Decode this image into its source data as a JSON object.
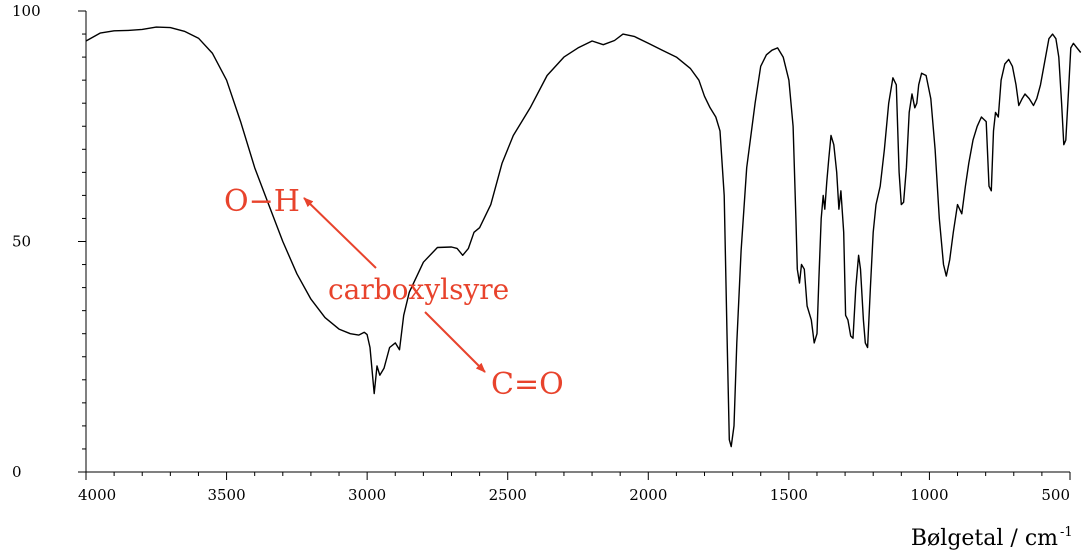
{
  "chart_data": {
    "type": "line",
    "xlabel": "Bølgetal / cm",
    "xlabel_sup": "-1",
    "ylabel": "",
    "xlim": [
      4000,
      500
    ],
    "ylim": [
      0,
      100
    ],
    "x_ticks": [
      4000,
      3500,
      3000,
      2500,
      2000,
      1500,
      1000,
      500
    ],
    "y_ticks": [
      0,
      50,
      100
    ],
    "grid": false,
    "line_color": "#000000",
    "annotation_color": "#e8432c",
    "series": [
      {
        "points": [
          [
            4000,
            93.5
          ],
          [
            3950,
            95.2
          ],
          [
            3900,
            95.7
          ],
          [
            3850,
            95.8
          ],
          [
            3800,
            96.0
          ],
          [
            3750,
            96.5
          ],
          [
            3700,
            96.4
          ],
          [
            3650,
            95.6
          ],
          [
            3600,
            94.1
          ],
          [
            3550,
            90.8
          ],
          [
            3500,
            85.0
          ],
          [
            3450,
            76.0
          ],
          [
            3400,
            66.0
          ],
          [
            3350,
            58.0
          ],
          [
            3300,
            50.0
          ],
          [
            3250,
            43.0
          ],
          [
            3200,
            37.5
          ],
          [
            3150,
            33.5
          ],
          [
            3100,
            31.0
          ],
          [
            3060,
            30.0
          ],
          [
            3030,
            29.7
          ],
          [
            3010,
            30.3
          ],
          [
            3000,
            29.8
          ],
          [
            2990,
            27.0
          ],
          [
            2975,
            17.0
          ],
          [
            2965,
            23.0
          ],
          [
            2955,
            21.0
          ],
          [
            2940,
            22.5
          ],
          [
            2920,
            27.0
          ],
          [
            2900,
            28.0
          ],
          [
            2885,
            26.5
          ],
          [
            2870,
            34.0
          ],
          [
            2850,
            39.0
          ],
          [
            2800,
            45.5
          ],
          [
            2750,
            48.7
          ],
          [
            2700,
            48.8
          ],
          [
            2680,
            48.5
          ],
          [
            2660,
            47.0
          ],
          [
            2640,
            48.5
          ],
          [
            2620,
            52.0
          ],
          [
            2600,
            53.0
          ],
          [
            2560,
            58.0
          ],
          [
            2520,
            67.0
          ],
          [
            2480,
            73.0
          ],
          [
            2420,
            79.0
          ],
          [
            2360,
            86.0
          ],
          [
            2300,
            90.0
          ],
          [
            2250,
            92.0
          ],
          [
            2200,
            93.5
          ],
          [
            2160,
            92.7
          ],
          [
            2120,
            93.6
          ],
          [
            2090,
            95.0
          ],
          [
            2050,
            94.5
          ],
          [
            2000,
            93.0
          ],
          [
            1950,
            91.5
          ],
          [
            1900,
            90.0
          ],
          [
            1850,
            87.5
          ],
          [
            1820,
            85.0
          ],
          [
            1800,
            81.5
          ],
          [
            1780,
            79.0
          ],
          [
            1760,
            77.0
          ],
          [
            1745,
            74.0
          ],
          [
            1730,
            60.0
          ],
          [
            1720,
            30.0
          ],
          [
            1712,
            7.0
          ],
          [
            1705,
            5.5
          ],
          [
            1695,
            10.0
          ],
          [
            1685,
            28.0
          ],
          [
            1670,
            48.0
          ],
          [
            1650,
            66.0
          ],
          [
            1620,
            80.0
          ],
          [
            1600,
            88.0
          ],
          [
            1580,
            90.5
          ],
          [
            1560,
            91.5
          ],
          [
            1540,
            92.0
          ],
          [
            1520,
            90.0
          ],
          [
            1500,
            85.0
          ],
          [
            1485,
            75.0
          ],
          [
            1475,
            55.0
          ],
          [
            1470,
            44.0
          ],
          [
            1462,
            41.0
          ],
          [
            1455,
            45.0
          ],
          [
            1445,
            44.0
          ],
          [
            1435,
            36.0
          ],
          [
            1420,
            33.0
          ],
          [
            1410,
            28.0
          ],
          [
            1400,
            30.0
          ],
          [
            1393,
            42.0
          ],
          [
            1385,
            55.0
          ],
          [
            1378,
            60.0
          ],
          [
            1372,
            57.0
          ],
          [
            1365,
            63.0
          ],
          [
            1358,
            68.0
          ],
          [
            1350,
            73.0
          ],
          [
            1340,
            71.0
          ],
          [
            1330,
            65.0
          ],
          [
            1322,
            57.0
          ],
          [
            1315,
            61.0
          ],
          [
            1305,
            52.0
          ],
          [
            1298,
            34.0
          ],
          [
            1290,
            33.0
          ],
          [
            1280,
            29.5
          ],
          [
            1272,
            29.0
          ],
          [
            1262,
            40.0
          ],
          [
            1252,
            47.0
          ],
          [
            1245,
            44.0
          ],
          [
            1235,
            33.0
          ],
          [
            1228,
            28.0
          ],
          [
            1220,
            27.0
          ],
          [
            1210,
            40.0
          ],
          [
            1200,
            52.0
          ],
          [
            1190,
            58.0
          ],
          [
            1175,
            62.0
          ],
          [
            1160,
            70.0
          ],
          [
            1145,
            80.0
          ],
          [
            1130,
            85.5
          ],
          [
            1118,
            84.0
          ],
          [
            1108,
            65.0
          ],
          [
            1100,
            58.0
          ],
          [
            1092,
            58.5
          ],
          [
            1082,
            66.0
          ],
          [
            1072,
            78.0
          ],
          [
            1062,
            82.0
          ],
          [
            1052,
            79.0
          ],
          [
            1045,
            80.0
          ],
          [
            1038,
            84.0
          ],
          [
            1028,
            86.5
          ],
          [
            1012,
            86.0
          ],
          [
            995,
            81.0
          ],
          [
            980,
            70.0
          ],
          [
            965,
            55.0
          ],
          [
            950,
            45.0
          ],
          [
            940,
            42.5
          ],
          [
            928,
            46.0
          ],
          [
            915,
            52.0
          ],
          [
            900,
            58.0
          ],
          [
            885,
            56.0
          ],
          [
            872,
            62.0
          ],
          [
            860,
            67.0
          ],
          [
            845,
            72.0
          ],
          [
            830,
            75.0
          ],
          [
            815,
            77.0
          ],
          [
            798,
            76.0
          ],
          [
            788,
            62.0
          ],
          [
            780,
            61.0
          ],
          [
            772,
            74.0
          ],
          [
            765,
            78.0
          ],
          [
            755,
            77.0
          ],
          [
            745,
            85.0
          ],
          [
            732,
            88.5
          ],
          [
            718,
            89.5
          ],
          [
            705,
            88.0
          ],
          [
            692,
            84.0
          ],
          [
            682,
            79.5
          ],
          [
            670,
            81.0
          ],
          [
            660,
            82.0
          ],
          [
            645,
            81.0
          ],
          [
            630,
            79.5
          ],
          [
            618,
            81.0
          ],
          [
            605,
            84.0
          ],
          [
            590,
            89.0
          ],
          [
            575,
            94.0
          ],
          [
            562,
            95.0
          ],
          [
            550,
            94.0
          ],
          [
            540,
            90.0
          ],
          [
            530,
            80.0
          ],
          [
            522,
            71.0
          ],
          [
            515,
            72.0
          ],
          [
            505,
            83.0
          ],
          [
            497,
            92.0
          ],
          [
            488,
            93.0
          ],
          [
            475,
            92.0
          ],
          [
            462,
            91.0
          ]
        ]
      }
    ],
    "annotations": {
      "oh": "O−H",
      "carboxyl": "carboxylsyre",
      "co": "C=O"
    }
  }
}
